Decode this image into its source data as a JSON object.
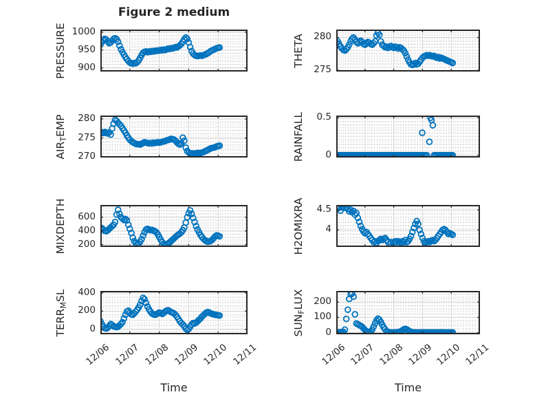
{
  "figure": {
    "title": "Figure 2 medium",
    "background": "#ffffff"
  },
  "styles": {
    "marker_color": "#0072BD",
    "axis_box_color": "#262626",
    "major_grid_color": "#d2d2d2",
    "minor_grid_color": "#b5b5b5",
    "text_color": "#262626"
  },
  "xaxis": {
    "label": "Time",
    "tick_labels": [
      "12/06",
      "12/07",
      "12/08",
      "12/09",
      "12/10",
      "12/11"
    ],
    "tick_values": [
      0,
      1,
      2,
      3,
      4,
      5
    ],
    "xlim": [
      0,
      5
    ],
    "minor_step": 0.0833
  },
  "chart_data": [
    {
      "id": "pressure",
      "type": "scatter",
      "row": 0,
      "col": 0,
      "ylabel_parts": [
        {
          "text": "PRESSURE",
          "sub": false
        }
      ],
      "yticks": [
        900,
        950,
        1000
      ],
      "ytick_labels": [
        "900",
        "950",
        "1000"
      ],
      "ylim": [
        890,
        1007
      ],
      "yminor": 10,
      "x0": 0,
      "dx": 0.05,
      "y": [
        965,
        972,
        978,
        981,
        979,
        974,
        969,
        971,
        976,
        981,
        983,
        980,
        973,
        962,
        952,
        944,
        937,
        930,
        924,
        919,
        915,
        913,
        912,
        914,
        913,
        916,
        921,
        928,
        936,
        942,
        945,
        946,
        944,
        946,
        945,
        947,
        946,
        948,
        947,
        949,
        948,
        950,
        949,
        951,
        950,
        952,
        954,
        953,
        955,
        954,
        956,
        958,
        957,
        960,
        963,
        967,
        973,
        980,
        985,
        981,
        971,
        958,
        947,
        940,
        936,
        934,
        933,
        934,
        935,
        934,
        936,
        937,
        939,
        941,
        944,
        947,
        949,
        951,
        953,
        955,
        956,
        957
      ]
    },
    {
      "id": "theta",
      "type": "scatter",
      "row": 0,
      "col": 1,
      "ylabel_parts": [
        {
          "text": "THETA",
          "sub": false
        }
      ],
      "yticks": [
        275,
        280
      ],
      "ytick_labels": [
        "275",
        "280"
      ],
      "ylim": [
        274.8,
        281.2
      ],
      "yminor": 0.5,
      "x0": 0,
      "dx": 0.05,
      "y": [
        279.2,
        279.4,
        279.0,
        278.6,
        278.3,
        278.1,
        278.0,
        278.2,
        278.5,
        278.9,
        279.4,
        279.8,
        280.0,
        279.7,
        279.3,
        279.1,
        279.3,
        279.5,
        279.3,
        279.0,
        278.9,
        279.1,
        279.3,
        279.2,
        279.0,
        278.9,
        279.1,
        279.4,
        280.3,
        280.7,
        280.4,
        279.4,
        278.9,
        278.7,
        278.5,
        278.6,
        278.4,
        278.5,
        278.7,
        278.5,
        278.4,
        278.6,
        278.5,
        278.3,
        278.5,
        278.4,
        278.2,
        278.0,
        277.6,
        277.1,
        276.6,
        276.2,
        275.9,
        275.8,
        275.9,
        276.1,
        275.9,
        276.0,
        276.3,
        276.6,
        276.9,
        277.1,
        277.2,
        277.3,
        277.2,
        277.3,
        277.2,
        277.1,
        277.2,
        277.0,
        276.9,
        277.0,
        276.8,
        276.9,
        276.8,
        276.7,
        276.6,
        276.5,
        276.4,
        276.3,
        276.2,
        276.1
      ]
    },
    {
      "id": "airtemp",
      "type": "scatter",
      "row": 1,
      "col": 0,
      "ylabel_parts": [
        {
          "text": "AIR",
          "sub": false
        },
        {
          "text": "T",
          "sub": true
        },
        {
          "text": "EMP",
          "sub": false
        }
      ],
      "yticks": [
        270,
        275,
        280
      ],
      "ytick_labels": [
        "270",
        "275",
        "280"
      ],
      "ylim": [
        269.9,
        280.9
      ],
      "yminor": 1,
      "x0": 0,
      "dx": 0.05,
      "y": [
        276.4,
        276.5,
        276.3,
        276.6,
        276.4,
        276.2,
        276.5,
        275.9,
        277.5,
        278.8,
        279.8,
        279.5,
        279.0,
        278.6,
        278.2,
        277.6,
        277.0,
        276.4,
        275.7,
        275.1,
        274.6,
        274.2,
        273.9,
        273.7,
        273.5,
        273.4,
        273.4,
        273.3,
        273.5,
        273.7,
        273.9,
        273.8,
        273.7,
        273.6,
        273.7,
        273.6,
        273.8,
        273.7,
        273.8,
        273.9,
        273.8,
        273.9,
        274.0,
        274.1,
        274.2,
        274.4,
        274.5,
        274.6,
        274.8,
        274.7,
        274.6,
        274.3,
        273.9,
        273.5,
        273.3,
        273.6,
        275.1,
        274.3,
        272.5,
        271.6,
        271.2,
        271.0,
        271.0,
        270.9,
        271.0,
        270.9,
        271.1,
        271.0,
        271.1,
        271.2,
        271.3,
        271.5,
        271.7,
        271.9,
        272.1,
        272.3,
        272.4,
        272.5,
        272.6,
        272.8,
        272.9,
        273.0
      ]
    },
    {
      "id": "rainfall",
      "type": "scatter",
      "row": 1,
      "col": 1,
      "ylabel_parts": [
        {
          "text": "RAINFALL",
          "sub": false
        }
      ],
      "yticks": [
        0,
        0.5
      ],
      "ytick_labels": [
        "0",
        "0.5"
      ],
      "ylim": [
        -0.03,
        0.53
      ],
      "yminor": 0.05,
      "x0": 0,
      "dx": 0.05,
      "y": [
        0,
        0,
        0,
        0,
        0,
        0,
        0,
        0,
        0,
        0,
        0,
        0,
        0,
        0,
        0,
        0,
        0,
        0,
        0,
        0,
        0,
        0,
        0,
        0,
        0,
        0,
        0,
        0,
        0,
        0,
        0,
        0,
        0,
        0,
        0,
        0,
        0,
        0,
        0,
        0,
        0,
        0,
        0,
        0,
        0,
        0,
        0,
        0,
        0,
        0,
        0,
        0,
        0,
        0,
        0,
        0,
        0,
        0,
        0,
        0,
        0,
        0,
        0,
        0,
        null,
        null,
        null,
        null,
        0,
        0,
        0,
        0,
        0,
        0,
        0,
        0,
        0,
        0,
        0,
        0,
        0,
        0
      ],
      "extra_points": [
        [
          2.99,
          0.3
        ],
        [
          3.24,
          0.18
        ],
        [
          3.28,
          0.5
        ],
        [
          3.31,
          0.47
        ],
        [
          3.36,
          0.4
        ]
      ]
    },
    {
      "id": "mixdepth",
      "type": "scatter",
      "row": 2,
      "col": 0,
      "ylabel_parts": [
        {
          "text": "MIXDEPTH",
          "sub": false
        }
      ],
      "yticks": [
        200,
        400,
        600
      ],
      "ytick_labels": [
        "200",
        "400",
        "600"
      ],
      "ylim": [
        165,
        780
      ],
      "yminor": 50,
      "x0": 0,
      "dx": 0.05,
      "y": [
        430,
        440,
        420,
        400,
        395,
        410,
        430,
        450,
        470,
        490,
        530,
        640,
        710,
        650,
        600,
        580,
        560,
        575,
        555,
        490,
        430,
        370,
        300,
        250,
        220,
        205,
        215,
        240,
        280,
        330,
        380,
        420,
        430,
        420,
        410,
        415,
        405,
        395,
        380,
        350,
        310,
        270,
        235,
        210,
        200,
        205,
        215,
        230,
        250,
        270,
        290,
        310,
        330,
        345,
        360,
        380,
        410,
        450,
        520,
        600,
        660,
        700,
        650,
        590,
        530,
        470,
        420,
        380,
        340,
        310,
        285,
        265,
        250,
        240,
        245,
        255,
        270,
        295,
        320,
        335,
        330,
        320
      ]
    },
    {
      "id": "h2omixra",
      "type": "scatter",
      "row": 2,
      "col": 1,
      "ylabel_parts": [
        {
          "text": "H2OMIXRA",
          "sub": false
        }
      ],
      "yticks": [
        4,
        4.5
      ],
      "ytick_labels": [
        "4",
        "4.5"
      ],
      "ylim": [
        3.58,
        4.62
      ],
      "yminor": 0.1,
      "x0": 0,
      "dx": 0.05,
      "y": [
        4.56,
        4.57,
        4.55,
        4.48,
        4.56,
        4.57,
        4.55,
        4.56,
        4.52,
        4.46,
        4.5,
        4.44,
        4.47,
        4.38,
        4.42,
        4.3,
        4.2,
        4.1,
        4.02,
        3.96,
        3.92,
        3.95,
        3.9,
        3.85,
        3.8,
        3.75,
        3.7,
        3.72,
        3.68,
        3.72,
        3.75,
        3.78,
        3.75,
        3.78,
        3.8,
        3.75,
        3.7,
        3.65,
        3.7,
        3.55,
        3.7,
        3.72,
        3.7,
        3.72,
        3.7,
        3.68,
        3.72,
        3.7,
        3.75,
        3.7,
        3.72,
        3.78,
        3.85,
        3.95,
        4.05,
        4.15,
        4.22,
        4.15,
        4.0,
        3.9,
        3.8,
        3.72,
        3.68,
        3.7,
        3.72,
        3.7,
        3.73,
        3.75,
        3.72,
        3.75,
        3.8,
        3.85,
        3.9,
        3.95,
        4.0,
        4.02,
        4.0,
        3.95,
        3.9,
        3.92,
        3.9,
        3.88
      ]
    },
    {
      "id": "terrmsl",
      "type": "scatter",
      "row": 3,
      "col": 0,
      "ylabel_parts": [
        {
          "text": "TERR",
          "sub": false
        },
        {
          "text": "M",
          "sub": true
        },
        {
          "text": "SL",
          "sub": false
        }
      ],
      "yticks": [
        0,
        200,
        400
      ],
      "ytick_labels": [
        "0",
        "200",
        "400"
      ],
      "ylim": [
        -52,
        420
      ],
      "yminor": 50,
      "x0": 0,
      "dx": 0.05,
      "y": [
        90,
        60,
        30,
        15,
        10,
        20,
        40,
        60,
        50,
        35,
        30,
        25,
        30,
        45,
        60,
        80,
        120,
        160,
        195,
        205,
        185,
        165,
        160,
        175,
        195,
        215,
        240,
        270,
        310,
        345,
        330,
        290,
        250,
        220,
        195,
        175,
        165,
        160,
        165,
        175,
        185,
        180,
        170,
        180,
        195,
        205,
        210,
        200,
        190,
        185,
        175,
        160,
        140,
        115,
        90,
        70,
        55,
        35,
        10,
        -5,
        5,
        30,
        55,
        70,
        65,
        75,
        90,
        105,
        120,
        140,
        155,
        170,
        185,
        190,
        185,
        175,
        170,
        165,
        160,
        158,
        155,
        152
      ]
    },
    {
      "id": "sunflux",
      "type": "scatter",
      "row": 3,
      "col": 1,
      "ylabel_parts": [
        {
          "text": "SUN",
          "sub": false
        },
        {
          "text": "F",
          "sub": true
        },
        {
          "text": "LUX",
          "sub": false
        }
      ],
      "yticks": [
        0,
        100,
        200
      ],
      "ytick_labels": [
        "0",
        "100",
        "200"
      ],
      "ylim": [
        -10,
        272
      ],
      "yminor": 25,
      "x0": 0,
      "dx": 0.05,
      "y": [
        2,
        3,
        2,
        4,
        3,
        5,
        20,
        90,
        150,
        220,
        250,
        255,
        235,
        120,
        60,
        55,
        50,
        45,
        38,
        28,
        18,
        10,
        5,
        3,
        8,
        20,
        40,
        60,
        80,
        92,
        85,
        70,
        52,
        35,
        22,
        12,
        6,
        3,
        2,
        2,
        2,
        2,
        3,
        4,
        6,
        10,
        16,
        22,
        25,
        22,
        16,
        10,
        6,
        3,
        2,
        2,
        2,
        2,
        2,
        2,
        2,
        2,
        2,
        2,
        2,
        2,
        2,
        2,
        2,
        2,
        2,
        2,
        2,
        2,
        2,
        2,
        2,
        2,
        2,
        2,
        2,
        2
      ]
    }
  ]
}
